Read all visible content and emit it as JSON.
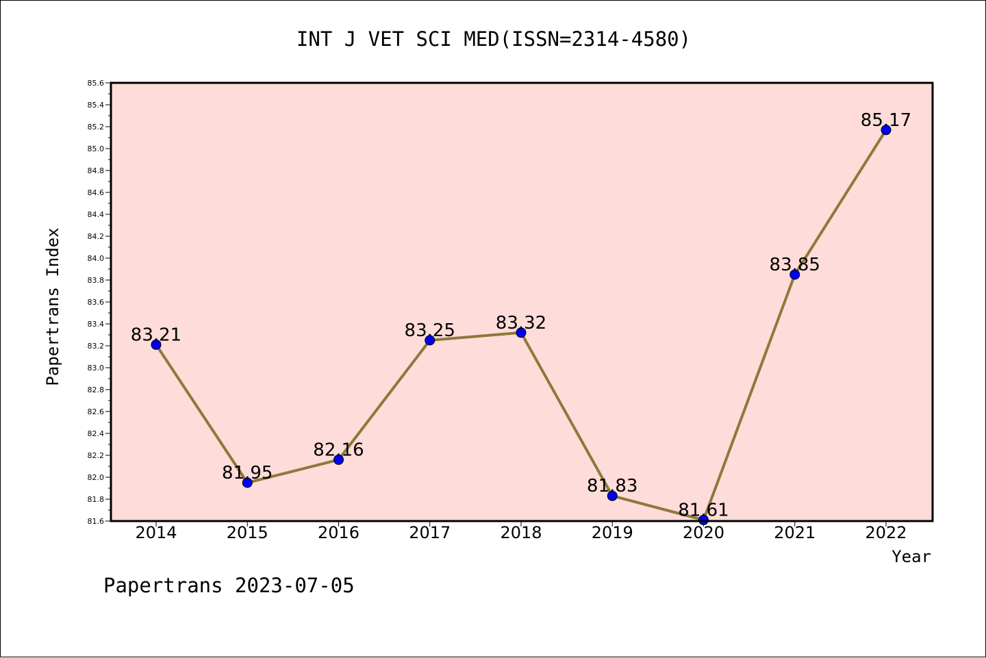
{
  "chart_data": {
    "type": "line",
    "title": "INT J VET SCI MED(ISSN=2314-4580)",
    "xlabel": "Year",
    "ylabel": "Papertrans Index",
    "footer": "Papertrans 2023-07-05",
    "categories": [
      "2014",
      "2015",
      "2016",
      "2017",
      "2018",
      "2019",
      "2020",
      "2021",
      "2022"
    ],
    "series": [
      {
        "values": [
          83.21,
          81.95,
          82.16,
          83.25,
          83.32,
          81.83,
          81.61,
          83.85,
          85.17
        ],
        "labels": [
          "83.21",
          "81.95",
          "82.16",
          "83.25",
          "83.32",
          "81.83",
          "81.61",
          "83.85",
          "85.17"
        ]
      }
    ],
    "ylim": [
      81.6,
      85.6
    ],
    "yticks": [
      "81.6",
      "81.8",
      "82.0",
      "82.2",
      "82.4",
      "82.6",
      "82.8",
      "83.0",
      "83.2",
      "83.4",
      "83.6",
      "83.8",
      "84.0",
      "84.2",
      "84.4",
      "84.6",
      "84.8",
      "85.0",
      "85.2",
      "85.4",
      "85.6"
    ],
    "grid": false,
    "colors": {
      "plot_background": "#fddcd9",
      "line": "#8b7a3a",
      "marker": "#0000ee"
    }
  }
}
